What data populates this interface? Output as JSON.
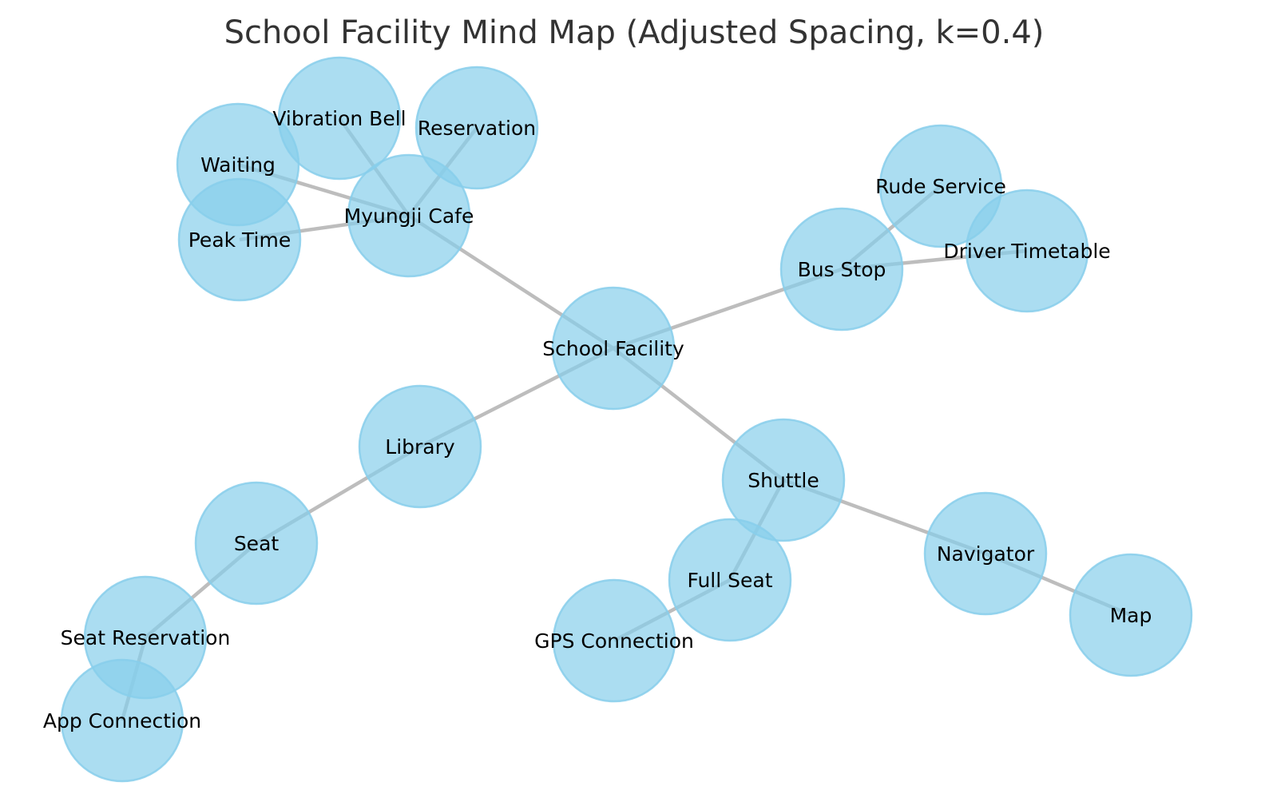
{
  "title": "School Facility Mind Map (Adjusted Spacing, k=0.4)",
  "colors": {
    "node_fill": "#87CEEB",
    "edge": "#BDBDBD",
    "title": "#333333",
    "label": "#000000",
    "background": "#FFFFFF"
  },
  "nodes": [
    {
      "id": "school-facility",
      "label": "School Facility"
    },
    {
      "id": "myungji-cafe",
      "label": "Myungji Cafe"
    },
    {
      "id": "bus-stop",
      "label": "Bus Stop"
    },
    {
      "id": "library",
      "label": "Library"
    },
    {
      "id": "shuttle",
      "label": "Shuttle"
    },
    {
      "id": "waiting",
      "label": "Waiting"
    },
    {
      "id": "peak-time",
      "label": "Peak Time"
    },
    {
      "id": "vibration-bell",
      "label": "Vibration Bell"
    },
    {
      "id": "reservation",
      "label": "Reservation"
    },
    {
      "id": "rude-service",
      "label": "Rude Service"
    },
    {
      "id": "driver-timetable",
      "label": "Driver Timetable"
    },
    {
      "id": "seat",
      "label": "Seat"
    },
    {
      "id": "seat-reservation",
      "label": "Seat Reservation"
    },
    {
      "id": "app-connection",
      "label": "App Connection"
    },
    {
      "id": "full-seat",
      "label": "Full Seat"
    },
    {
      "id": "gps-connection",
      "label": "GPS Connection"
    },
    {
      "id": "navigator",
      "label": "Navigator"
    },
    {
      "id": "map",
      "label": "Map"
    }
  ],
  "edges": [
    {
      "source": "school-facility",
      "target": "myungji-cafe"
    },
    {
      "source": "school-facility",
      "target": "bus-stop"
    },
    {
      "source": "school-facility",
      "target": "library"
    },
    {
      "source": "school-facility",
      "target": "shuttle"
    },
    {
      "source": "myungji-cafe",
      "target": "waiting"
    },
    {
      "source": "myungji-cafe",
      "target": "peak-time"
    },
    {
      "source": "myungji-cafe",
      "target": "vibration-bell"
    },
    {
      "source": "myungji-cafe",
      "target": "reservation"
    },
    {
      "source": "bus-stop",
      "target": "rude-service"
    },
    {
      "source": "bus-stop",
      "target": "driver-timetable"
    },
    {
      "source": "library",
      "target": "seat"
    },
    {
      "source": "seat",
      "target": "seat-reservation"
    },
    {
      "source": "seat-reservation",
      "target": "app-connection"
    },
    {
      "source": "shuttle",
      "target": "full-seat"
    },
    {
      "source": "full-seat",
      "target": "gps-connection"
    },
    {
      "source": "shuttle",
      "target": "navigator"
    },
    {
      "source": "navigator",
      "target": "map"
    }
  ]
}
